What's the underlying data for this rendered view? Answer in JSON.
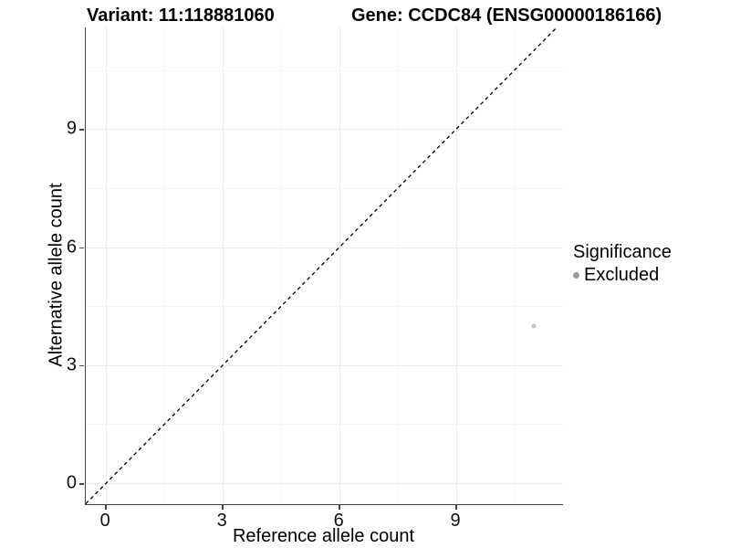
{
  "chart_data": {
    "type": "scatter",
    "title_variant": "Variant: 11:118881060",
    "title_gene": "Gene: CCDC84 (ENSG00000186166)",
    "xlabel": "Reference allele count",
    "ylabel": "Alternative allele count",
    "xlim": [
      -0.52,
      11.74
    ],
    "ylim": [
      -0.53,
      11.58
    ],
    "xticks": [
      0,
      3,
      6,
      9
    ],
    "yticks": [
      0,
      3,
      6,
      9
    ],
    "xminor": [
      1.5,
      4.5,
      7.5,
      10.5
    ],
    "yminor": [
      1.5,
      4.5,
      7.5,
      10.5
    ],
    "grid": true,
    "identity_line": {
      "slope": 1,
      "intercept": 0,
      "style": "dashed"
    },
    "series": [
      {
        "name": "Excluded",
        "points": [
          {
            "x": 11,
            "y": 4
          }
        ]
      }
    ],
    "legend": {
      "title": "Significance",
      "position": "right",
      "items": [
        {
          "label": "Excluded"
        }
      ]
    },
    "colors": {
      "point": "#c3c3c3",
      "legend_key": "#9a9a9a",
      "grid_major": "#ececec",
      "grid_minor": "#f6f6f6",
      "axis": "#444444",
      "identity_line": "#000000"
    }
  }
}
